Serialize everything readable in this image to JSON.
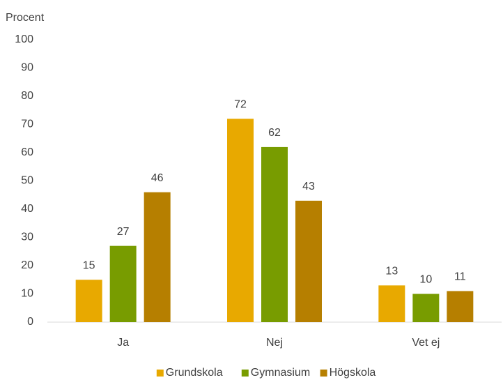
{
  "chart_data": {
    "type": "bar",
    "y_label": "Procent",
    "categories": [
      "Ja",
      "Nej",
      "Vet ej"
    ],
    "series": [
      {
        "name": "Grundskola",
        "color": "#e8a900",
        "values": [
          15,
          72,
          13
        ]
      },
      {
        "name": "Gymnasium",
        "color": "#789c00",
        "values": [
          27,
          62,
          10
        ]
      },
      {
        "name": "Högskola",
        "color": "#b67f00",
        "values": [
          46,
          43,
          11
        ]
      }
    ],
    "ylim": [
      0,
      100
    ],
    "yticks": [
      0,
      10,
      20,
      30,
      40,
      50,
      60,
      70,
      80,
      90,
      100
    ],
    "grid": false,
    "legend": "bottom"
  }
}
